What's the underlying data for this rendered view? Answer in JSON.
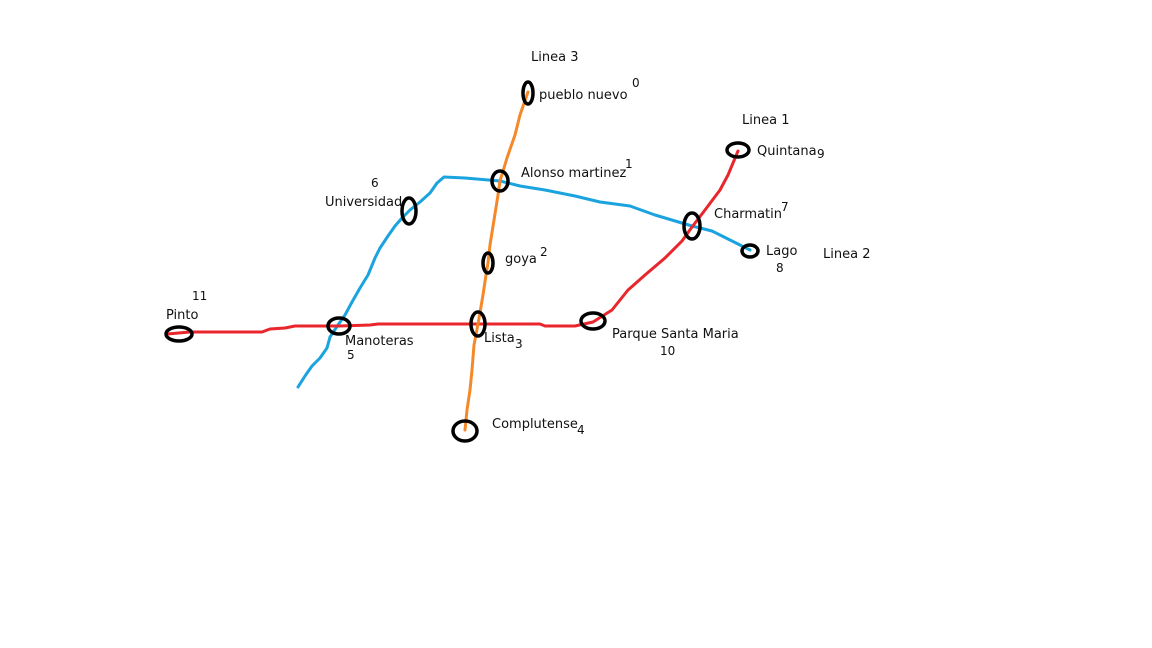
{
  "colors": {
    "linea1": "#e8262b",
    "linea2": "#1aa3de",
    "linea3": "#f5892a",
    "station_ring": "#000000",
    "background": "#ffffff"
  },
  "lines": {
    "linea1": "Linea 1",
    "linea2": "Linea 2",
    "linea3": "Linea 3"
  },
  "stations": {
    "pueblo_nuevo": {
      "name": "pueblo nuevo",
      "id": "0"
    },
    "alonso_martinez": {
      "name": "Alonso martinez",
      "id": "1"
    },
    "goya": {
      "name": "goya",
      "id": "2"
    },
    "lista": {
      "name": "Lista",
      "id": "3"
    },
    "complutense": {
      "name": "Complutense",
      "id": "4"
    },
    "manoteras": {
      "name": "Manoteras",
      "id": "5"
    },
    "universidad": {
      "name": "Universidad",
      "id": "6"
    },
    "charmatin": {
      "name": "Charmatin",
      "id": "7"
    },
    "lago": {
      "name": "Lago",
      "id": "8"
    },
    "quintana": {
      "name": "Quintana",
      "id": "9"
    },
    "parque_santa_maria": {
      "name": "Parque Santa Maria",
      "id": "10"
    },
    "pinto": {
      "name": "Pinto",
      "id": "11"
    }
  }
}
